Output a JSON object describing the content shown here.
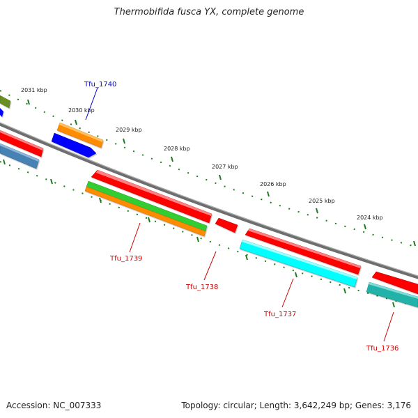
{
  "title": "Thermobifida fusca YX, complete genome",
  "footer": {
    "accession": "Accession: NC_007333",
    "summary": "Topology: circular; Length: 3,642,249 bp; Genes: 3,176"
  },
  "scale_labels": [
    "2031 kbp",
    "2030 kbp",
    "2029 kbp",
    "2028 kbp",
    "2027 kbp",
    "2026 kbp",
    "2025 kbp",
    "2024 kbp"
  ],
  "gene_labels": [
    {
      "text": "Tfu_1740",
      "color": "#0000cc"
    },
    {
      "text": "Tfu_1739",
      "color": "#cc0000"
    },
    {
      "text": "Tfu_1738",
      "color": "#cc0000"
    },
    {
      "text": "Tfu_1737",
      "color": "#cc0000"
    },
    {
      "text": "Tfu_1736",
      "color": "#cc0000"
    }
  ],
  "colors": {
    "backbone": "#808080",
    "tick": "#1e7a1e",
    "cds": "#ff0000",
    "olive": "#6b8e23",
    "orange": "#ff8c00",
    "blue": "#0000ff",
    "steelblue": "#4682b4",
    "green": "#32cd32",
    "cyan": "#00ffff",
    "teal": "#20b2aa"
  }
}
